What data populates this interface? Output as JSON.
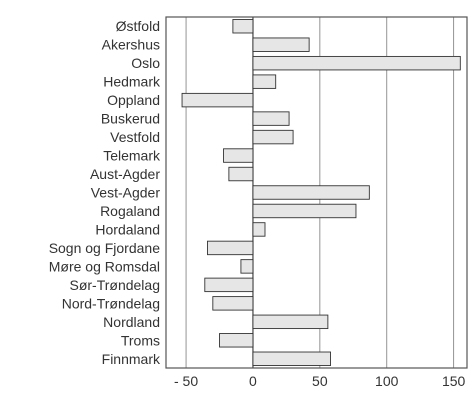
{
  "chart_data": {
    "type": "bar",
    "orientation": "horizontal",
    "categories": [
      "Østfold",
      "Akershus",
      "Oslo",
      "Hedmark",
      "Oppland",
      "Buskerud",
      "Vestfold",
      "Telemark",
      "Aust-Agder",
      "Vest-Agder",
      "Rogaland",
      "Hordaland",
      "Sogn og Fjordane",
      "Møre og Romsdal",
      "Sør-Trøndelag",
      "Nord-Trøndelag",
      "Nordland",
      "Troms",
      "Finnmark"
    ],
    "values": [
      -15,
      42,
      155,
      17,
      -53,
      27,
      30,
      -22,
      -18,
      87,
      77,
      9,
      -34,
      -9,
      -36,
      -30,
      56,
      -25,
      58
    ],
    "xlim": [
      -65,
      160
    ],
    "xticks": [
      -50,
      0,
      50,
      100,
      150
    ],
    "xtick_labels": [
      "- 50",
      "0",
      "50",
      "100",
      "150"
    ],
    "grid": "vertical-at-major-ticks",
    "bar_fill": "#e6e6e6",
    "bar_stroke": "#333333",
    "title": "",
    "xlabel": "",
    "ylabel": ""
  }
}
